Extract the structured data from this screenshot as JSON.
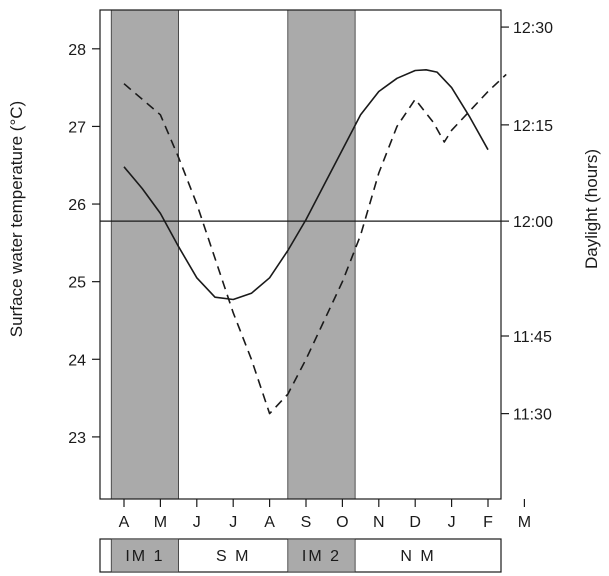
{
  "chart_data": {
    "type": "line",
    "x": [
      "A",
      "M",
      "J",
      "J",
      "A",
      "S",
      "O",
      "N",
      "D",
      "J",
      "F",
      "M"
    ],
    "ylabel": "Surface water temperature (°C)",
    "ylim": [
      22.2,
      28.5
    ],
    "yticks": [
      "23",
      "24",
      "25",
      "26",
      "27",
      "28"
    ],
    "y2label": "Daylight (hours)",
    "y2ticks": [
      "11:30",
      "11:45",
      "12:00",
      "12:15",
      "12:30"
    ],
    "y2_in_temperature_units": {
      "11:30": 23.3,
      "11:45": 24.3,
      "12:00": 25.78,
      "12:15": 27.02,
      "12:30": 28.28
    },
    "reference_line": {
      "axis": "y2",
      "value": "12:00"
    },
    "series": [
      {
        "style": "solid",
        "axis": "y2",
        "points": [
          [
            0,
            26.48
          ],
          [
            0.5,
            26.2
          ],
          [
            1,
            25.88
          ],
          [
            1.5,
            25.45
          ],
          [
            2,
            25.05
          ],
          [
            2.5,
            24.8
          ],
          [
            3,
            24.77
          ],
          [
            3.5,
            24.85
          ],
          [
            4,
            25.05
          ],
          [
            4.5,
            25.4
          ],
          [
            5,
            25.8
          ],
          [
            5.5,
            26.25
          ],
          [
            6,
            26.7
          ],
          [
            6.5,
            27.15
          ],
          [
            7,
            27.45
          ],
          [
            7.5,
            27.62
          ],
          [
            8,
            27.72
          ],
          [
            8.3,
            27.73
          ],
          [
            8.6,
            27.7
          ],
          [
            9,
            27.5
          ],
          [
            9.5,
            27.12
          ],
          [
            10,
            26.7
          ]
        ]
      },
      {
        "style": "dashed",
        "axis": "y",
        "points": [
          [
            0,
            27.55
          ],
          [
            1,
            27.15
          ],
          [
            1.5,
            26.6
          ],
          [
            2,
            26.0
          ],
          [
            3,
            24.6
          ],
          [
            3.5,
            24.0
          ],
          [
            4,
            23.3
          ],
          [
            4.5,
            23.55
          ],
          [
            5,
            24.0
          ],
          [
            5.5,
            24.5
          ],
          [
            6,
            25.0
          ],
          [
            6.5,
            25.6
          ],
          [
            7,
            26.4
          ],
          [
            7.5,
            27.0
          ],
          [
            8,
            27.35
          ],
          [
            8.5,
            27.05
          ],
          [
            8.8,
            26.8
          ],
          [
            9,
            26.95
          ],
          [
            9.5,
            27.2
          ],
          [
            10,
            27.45
          ],
          [
            10.5,
            27.67
          ]
        ]
      }
    ],
    "shaded_periods": [
      {
        "label": "IM1",
        "from": -0.35,
        "to": 1.5
      },
      {
        "label": "IM2",
        "from": 4.5,
        "to": 6.35
      }
    ],
    "season_bar": [
      {
        "label": "IM 1",
        "from": -0.35,
        "to": 1.5,
        "shaded": true
      },
      {
        "label": "S M",
        "from": 1.5,
        "to": 4.5,
        "shaded": false
      },
      {
        "label": "IM 2",
        "from": 4.5,
        "to": 6.35,
        "shaded": true
      },
      {
        "label": "N M",
        "from": 6.35,
        "to": 11.6,
        "shaded": false
      }
    ],
    "grid": false,
    "legend": "none",
    "colors": {
      "shade": "#aaaaaa",
      "line": "#1a1a1a",
      "frame": "#1a1a1a"
    }
  }
}
